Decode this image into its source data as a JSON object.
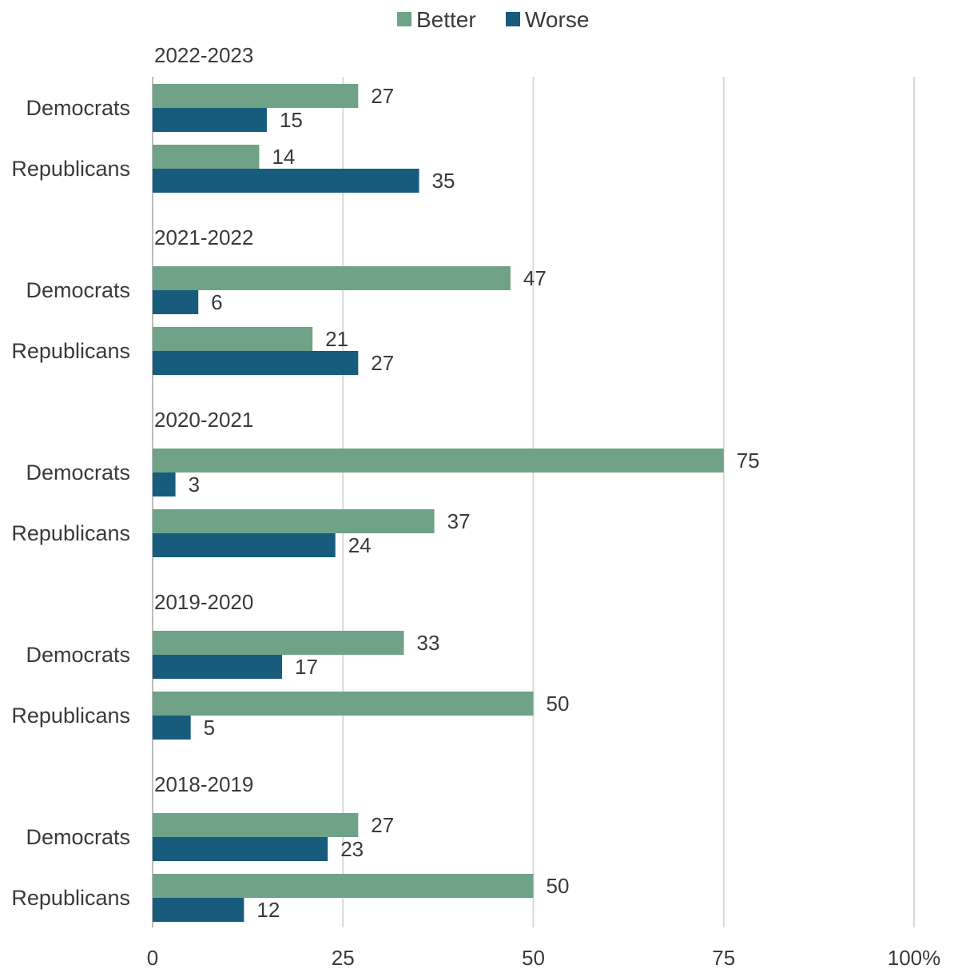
{
  "chart_data": {
    "type": "bar",
    "orientation": "horizontal",
    "xlim": [
      0,
      100
    ],
    "x_ticks": [
      "0",
      "25",
      "50",
      "75",
      "100%"
    ],
    "x_tick_values": [
      0,
      25,
      50,
      75,
      100
    ],
    "grid": true,
    "legend_position": "top",
    "series": [
      {
        "name": "Better",
        "color": "#6fa287"
      },
      {
        "name": "Worse",
        "color": "#175c7d"
      }
    ],
    "groups": [
      {
        "label": "2022-2023",
        "rows": [
          {
            "category": "Democrats",
            "values": [
              27,
              15
            ]
          },
          {
            "category": "Republicans",
            "values": [
              14,
              35
            ]
          }
        ]
      },
      {
        "label": "2021-2022",
        "rows": [
          {
            "category": "Democrats",
            "values": [
              47,
              6
            ]
          },
          {
            "category": "Republicans",
            "values": [
              21,
              27
            ]
          }
        ]
      },
      {
        "label": "2020-2021",
        "rows": [
          {
            "category": "Democrats",
            "values": [
              75,
              3
            ]
          },
          {
            "category": "Republicans",
            "values": [
              37,
              24
            ]
          }
        ]
      },
      {
        "label": "2019-2020",
        "rows": [
          {
            "category": "Democrats",
            "values": [
              33,
              17
            ]
          },
          {
            "category": "Republicans",
            "values": [
              50,
              5
            ]
          }
        ]
      },
      {
        "label": "2018-2019",
        "rows": [
          {
            "category": "Democrats",
            "values": [
              27,
              23
            ]
          },
          {
            "category": "Republicans",
            "values": [
              50,
              12
            ]
          }
        ]
      }
    ]
  }
}
